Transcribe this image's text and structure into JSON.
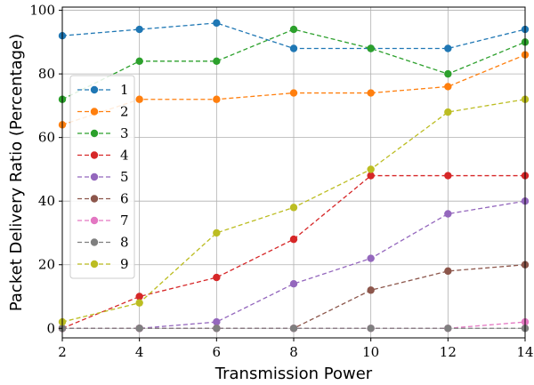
{
  "chart_data": {
    "type": "line",
    "xlabel": "Transmission Power",
    "ylabel": "Packet Delivery Ratio (Percentage)",
    "xlim": [
      2,
      14
    ],
    "ylim": [
      -3,
      101
    ],
    "xticks": [
      2,
      4,
      6,
      8,
      10,
      12,
      14
    ],
    "yticks": [
      0,
      20,
      40,
      60,
      80,
      100
    ],
    "x": [
      2,
      4,
      6,
      8,
      10,
      12,
      14
    ],
    "grid": true,
    "legend_position": "center-left",
    "series": [
      {
        "name": "1",
        "color": "#1f77b4",
        "values": [
          92,
          94,
          96,
          88,
          88,
          88,
          94
        ]
      },
      {
        "name": "2",
        "color": "#ff7f0e",
        "values": [
          64,
          72,
          72,
          74,
          74,
          76,
          86
        ]
      },
      {
        "name": "3",
        "color": "#2ca02c",
        "values": [
          72,
          84,
          84,
          94,
          88,
          80,
          90
        ]
      },
      {
        "name": "4",
        "color": "#d62728",
        "values": [
          0,
          10,
          16,
          28,
          48,
          48,
          48
        ]
      },
      {
        "name": "5",
        "color": "#9467bd",
        "values": [
          0,
          0,
          2,
          14,
          22,
          36,
          40
        ]
      },
      {
        "name": "6",
        "color": "#8c564b",
        "values": [
          0,
          0,
          0,
          0,
          12,
          18,
          20
        ]
      },
      {
        "name": "7",
        "color": "#e377c2",
        "values": [
          0,
          0,
          0,
          0,
          0,
          0,
          2
        ]
      },
      {
        "name": "8",
        "color": "#7f7f7f",
        "values": [
          0,
          0,
          0,
          0,
          0,
          0,
          0
        ]
      },
      {
        "name": "9",
        "color": "#bcbd22",
        "values": [
          2,
          8,
          30,
          38,
          50,
          68,
          72
        ]
      }
    ]
  }
}
